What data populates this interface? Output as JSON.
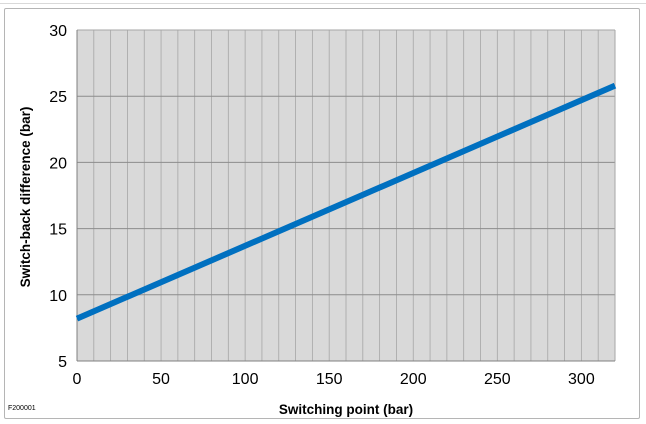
{
  "figure_id": "F200001",
  "chart_data": {
    "type": "line",
    "title": "",
    "xlabel": "Switching point (bar)",
    "ylabel": "Switch-back difference (bar)",
    "xlim": [
      0,
      320
    ],
    "ylim": [
      5,
      30
    ],
    "x_ticks": [
      0,
      50,
      100,
      150,
      200,
      250,
      300
    ],
    "y_ticks": [
      5,
      10,
      15,
      20,
      25,
      30
    ],
    "x_minor_grid_step": 10,
    "grid": true,
    "plot_background": "#d9d9d9",
    "line_color": "#0070c0",
    "series": [
      {
        "x": [
          0,
          320
        ],
        "y": [
          8.2,
          25.8
        ]
      }
    ]
  }
}
